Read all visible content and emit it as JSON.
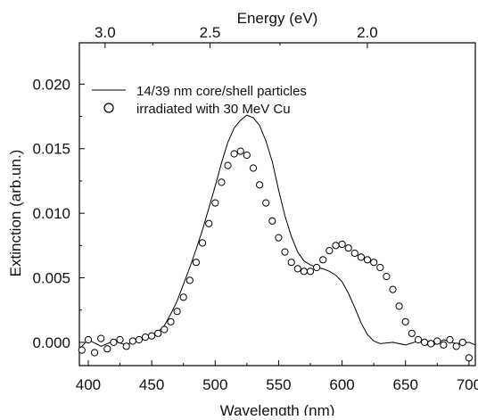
{
  "chart_data": {
    "type": "line",
    "title": "",
    "xlabel": "Wavelength (nm)",
    "ylabel": "Extinction (arb.un.)",
    "top_xlabel": "Energy (eV)",
    "xlim": [
      393,
      705
    ],
    "ylim": [
      -0.0018,
      0.0232
    ],
    "x_ticks": [
      400,
      450,
      500,
      550,
      600,
      650,
      700
    ],
    "x_tick_labels": [
      "400",
      "450",
      "500",
      "550",
      "600",
      "650",
      "700"
    ],
    "y_ticks": [
      0.0,
      0.005,
      0.01,
      0.015,
      0.02
    ],
    "y_tick_labels": [
      "0.000",
      "0.005",
      "0.010",
      "0.015",
      "0.020"
    ],
    "top_ticks_ev": [
      3.0,
      2.5,
      2.0
    ],
    "top_tick_labels": [
      "3.0",
      "2.5",
      "2.0"
    ],
    "grid": false,
    "legend_position": "top-left",
    "series": [
      {
        "name": "14/39 nm core/shell particles",
        "style": "line",
        "color": "#000000",
        "x": [
          393,
          400,
          410,
          420,
          430,
          440,
          450,
          455,
          460,
          465,
          470,
          475,
          480,
          485,
          490,
          495,
          500,
          505,
          510,
          515,
          520,
          525,
          530,
          535,
          540,
          545,
          550,
          555,
          560,
          565,
          570,
          575,
          580,
          585,
          590,
          595,
          600,
          605,
          610,
          615,
          620,
          625,
          630,
          640,
          650,
          660,
          670,
          680,
          690,
          700,
          705
        ],
        "y": [
          -0.0005,
          0.0002,
          -0.0003,
          0.0001,
          -0.0002,
          0.0003,
          0.0005,
          0.0008,
          0.0013,
          0.0022,
          0.0032,
          0.0045,
          0.0058,
          0.0072,
          0.0087,
          0.0104,
          0.0121,
          0.0139,
          0.0155,
          0.0166,
          0.0172,
          0.0176,
          0.0174,
          0.0168,
          0.0156,
          0.014,
          0.0118,
          0.0098,
          0.0082,
          0.007,
          0.0063,
          0.006,
          0.0058,
          0.0057,
          0.0055,
          0.0052,
          0.0047,
          0.0038,
          0.0027,
          0.0015,
          0.0006,
          0.0001,
          -0.0001,
          0.0,
          -0.0002,
          0.0001,
          -0.0003,
          0.0002,
          -0.0001,
          0.0,
          -0.0002
        ]
      },
      {
        "name": "irradiated with 30 MeV Cu",
        "style": "scatter",
        "marker": "open-circle",
        "color": "#000000",
        "x": [
          395,
          400,
          405,
          410,
          415,
          420,
          425,
          430,
          435,
          440,
          445,
          450,
          455,
          460,
          465,
          470,
          475,
          480,
          485,
          490,
          495,
          500,
          505,
          510,
          515,
          520,
          525,
          530,
          535,
          540,
          545,
          550,
          555,
          560,
          565,
          570,
          575,
          580,
          585,
          590,
          595,
          600,
          605,
          610,
          615,
          620,
          625,
          630,
          635,
          640,
          645,
          650,
          655,
          660,
          665,
          670,
          675,
          680,
          685,
          690,
          695,
          700
        ],
        "y": [
          -0.0006,
          0.0002,
          -0.0008,
          0.0003,
          -0.0005,
          0.0,
          0.0002,
          -0.0003,
          0.0001,
          0.0002,
          0.0004,
          0.0005,
          0.0007,
          0.001,
          0.0016,
          0.0024,
          0.0035,
          0.0048,
          0.0062,
          0.0077,
          0.0092,
          0.0108,
          0.0124,
          0.0137,
          0.0146,
          0.0148,
          0.0145,
          0.0135,
          0.0122,
          0.0108,
          0.0094,
          0.0081,
          0.007,
          0.0062,
          0.0057,
          0.0055,
          0.0055,
          0.0058,
          0.0064,
          0.0071,
          0.0075,
          0.0076,
          0.0073,
          0.0069,
          0.0066,
          0.0064,
          0.0062,
          0.0058,
          0.0051,
          0.0041,
          0.0028,
          0.0016,
          0.0007,
          0.0002,
          0.0,
          -0.0001,
          0.0001,
          -0.0002,
          0.0002,
          -0.0003,
          0.0,
          -0.0012
        ]
      }
    ]
  }
}
